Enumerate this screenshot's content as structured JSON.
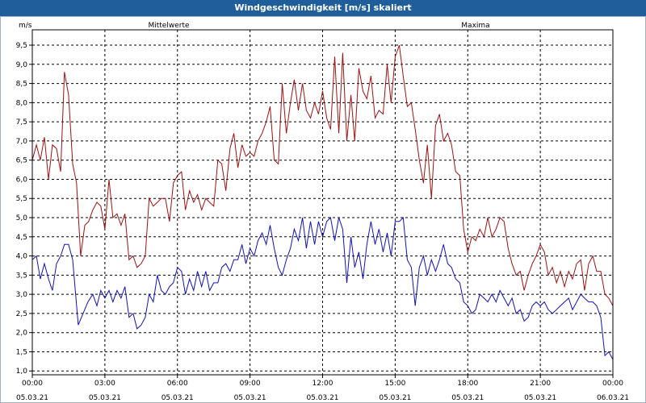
{
  "window": {
    "title": "Windgeschwindigkeit [m/s] skaliert"
  },
  "colors": {
    "titlebar": "#1f5e9a",
    "mean": "#1010c0",
    "max": "#a01010",
    "grid": "#000000"
  },
  "chart_data": {
    "type": "line",
    "title": "Windgeschwindigkeit [m/s] skaliert",
    "ylabel": "m/s",
    "ylim": [
      0.9,
      9.9
    ],
    "xlim_hours": [
      0,
      24
    ],
    "y_ticks": [
      "1.0",
      "1.5",
      "2.0",
      "2.5",
      "3.0",
      "3.5",
      "4.0",
      "4.5",
      "5.0",
      "5.5",
      "6.0",
      "6.5",
      "7.0",
      "7.5",
      "8.0",
      "8.5",
      "9.0",
      "9.5"
    ],
    "y_tick_values": [
      1.0,
      1.5,
      2.0,
      2.5,
      3.0,
      3.5,
      4.0,
      4.5,
      5.0,
      5.5,
      6.0,
      6.5,
      7.0,
      7.5,
      8.0,
      8.5,
      9.0,
      9.5
    ],
    "x_ticks": [
      {
        "time": "00:00",
        "date": "05.03.21"
      },
      {
        "time": "03:00",
        "date": "05.03.21"
      },
      {
        "time": "06:00",
        "date": "05.03.21"
      },
      {
        "time": "09:00",
        "date": "05.03.21"
      },
      {
        "time": "12:00",
        "date": "05.03.21"
      },
      {
        "time": "15:00",
        "date": "05.03.21"
      },
      {
        "time": "18:00",
        "date": "05.03.21"
      },
      {
        "time": "21:00",
        "date": "05.03.21"
      },
      {
        "time": "00:00",
        "date": "06.03.21"
      }
    ],
    "grid": true,
    "series": [
      {
        "name": "Mittelwerte",
        "color": "#1010c0",
        "points": [
          [
            0.0,
            3.9
          ],
          [
            0.17,
            4.0
          ],
          [
            0.33,
            3.4
          ],
          [
            0.5,
            3.8
          ],
          [
            0.67,
            3.4
          ],
          [
            0.83,
            3.1
          ],
          [
            1.0,
            3.8
          ],
          [
            1.17,
            4.0
          ],
          [
            1.33,
            4.3
          ],
          [
            1.5,
            4.3
          ],
          [
            1.67,
            3.9
          ],
          [
            1.9,
            2.2
          ],
          [
            2.1,
            2.5
          ],
          [
            2.3,
            2.8
          ],
          [
            2.5,
            3.0
          ],
          [
            2.67,
            2.7
          ],
          [
            2.83,
            3.1
          ],
          [
            3.0,
            2.9
          ],
          [
            3.17,
            3.1
          ],
          [
            3.33,
            2.8
          ],
          [
            3.5,
            3.1
          ],
          [
            3.67,
            2.9
          ],
          [
            3.83,
            3.2
          ],
          [
            4.0,
            2.4
          ],
          [
            4.17,
            2.5
          ],
          [
            4.33,
            2.1
          ],
          [
            4.5,
            2.2
          ],
          [
            4.67,
            2.4
          ],
          [
            4.83,
            3.0
          ],
          [
            5.0,
            2.8
          ],
          [
            5.17,
            3.5
          ],
          [
            5.33,
            3.1
          ],
          [
            5.5,
            3.0
          ],
          [
            5.67,
            3.2
          ],
          [
            5.83,
            3.3
          ],
          [
            6.0,
            3.7
          ],
          [
            6.17,
            3.6
          ],
          [
            6.33,
            3.0
          ],
          [
            6.5,
            3.4
          ],
          [
            6.67,
            3.1
          ],
          [
            6.83,
            3.6
          ],
          [
            7.0,
            3.2
          ],
          [
            7.17,
            3.6
          ],
          [
            7.33,
            3.1
          ],
          [
            7.5,
            3.3
          ],
          [
            7.67,
            3.3
          ],
          [
            7.83,
            3.7
          ],
          [
            8.0,
            3.8
          ],
          [
            8.17,
            3.6
          ],
          [
            8.33,
            3.9
          ],
          [
            8.5,
            3.9
          ],
          [
            8.67,
            4.3
          ],
          [
            8.83,
            3.8
          ],
          [
            9.0,
            4.2
          ],
          [
            9.17,
            4.0
          ],
          [
            9.33,
            4.4
          ],
          [
            9.5,
            4.6
          ],
          [
            9.67,
            4.3
          ],
          [
            9.83,
            4.8
          ],
          [
            10.0,
            4.2
          ],
          [
            10.17,
            3.7
          ],
          [
            10.33,
            3.5
          ],
          [
            10.5,
            3.9
          ],
          [
            10.67,
            4.2
          ],
          [
            10.83,
            4.7
          ],
          [
            11.0,
            4.4
          ],
          [
            11.17,
            5.0
          ],
          [
            11.33,
            4.2
          ],
          [
            11.5,
            4.9
          ],
          [
            11.67,
            4.3
          ],
          [
            11.83,
            4.9
          ],
          [
            12.0,
            4.5
          ],
          [
            12.17,
            4.9
          ],
          [
            12.33,
            5.0
          ],
          [
            12.5,
            4.4
          ],
          [
            12.67,
            5.0
          ],
          [
            12.83,
            4.7
          ],
          [
            13.0,
            3.3
          ],
          [
            13.17,
            4.5
          ],
          [
            13.33,
            3.7
          ],
          [
            13.5,
            4.1
          ],
          [
            13.67,
            3.4
          ],
          [
            13.83,
            4.3
          ],
          [
            14.0,
            4.9
          ],
          [
            14.17,
            4.3
          ],
          [
            14.33,
            4.7
          ],
          [
            14.5,
            4.1
          ],
          [
            14.67,
            4.6
          ],
          [
            14.83,
            4.0
          ],
          [
            15.0,
            4.9
          ],
          [
            15.17,
            4.9
          ],
          [
            15.33,
            5.0
          ],
          [
            15.5,
            3.9
          ],
          [
            15.67,
            3.7
          ],
          [
            15.83,
            2.7
          ],
          [
            16.0,
            3.7
          ],
          [
            16.17,
            4.0
          ],
          [
            16.33,
            3.5
          ],
          [
            16.5,
            3.9
          ],
          [
            16.67,
            3.6
          ],
          [
            16.83,
            3.9
          ],
          [
            17.0,
            4.3
          ],
          [
            17.17,
            3.8
          ],
          [
            17.33,
            3.7
          ],
          [
            17.5,
            3.4
          ],
          [
            17.67,
            3.3
          ],
          [
            17.83,
            2.8
          ],
          [
            18.0,
            2.7
          ],
          [
            18.17,
            2.5
          ],
          [
            18.33,
            2.6
          ],
          [
            18.5,
            3.0
          ],
          [
            18.67,
            2.9
          ],
          [
            18.83,
            2.8
          ],
          [
            19.0,
            3.0
          ],
          [
            19.17,
            2.8
          ],
          [
            19.33,
            3.1
          ],
          [
            19.5,
            2.9
          ],
          [
            19.67,
            2.7
          ],
          [
            19.83,
            2.9
          ],
          [
            20.0,
            2.5
          ],
          [
            20.17,
            2.6
          ],
          [
            20.33,
            2.3
          ],
          [
            20.5,
            2.4
          ],
          [
            20.67,
            2.7
          ],
          [
            20.83,
            2.8
          ],
          [
            21.0,
            2.7
          ],
          [
            21.17,
            2.8
          ],
          [
            21.33,
            2.6
          ],
          [
            21.5,
            2.5
          ],
          [
            21.67,
            2.6
          ],
          [
            21.83,
            2.7
          ],
          [
            22.0,
            2.8
          ],
          [
            22.17,
            2.9
          ],
          [
            22.33,
            2.6
          ],
          [
            22.5,
            2.8
          ],
          [
            22.67,
            3.0
          ],
          [
            22.83,
            2.9
          ],
          [
            23.0,
            2.8
          ],
          [
            23.17,
            2.8
          ],
          [
            23.33,
            2.7
          ],
          [
            23.5,
            2.4
          ],
          [
            23.67,
            1.4
          ],
          [
            23.83,
            1.5
          ],
          [
            24.0,
            1.3
          ]
        ]
      },
      {
        "name": "Maxima",
        "color": "#a01010",
        "points": [
          [
            0.0,
            6.5
          ],
          [
            0.17,
            6.9
          ],
          [
            0.33,
            6.5
          ],
          [
            0.5,
            7.1
          ],
          [
            0.67,
            6.0
          ],
          [
            0.83,
            6.9
          ],
          [
            1.0,
            6.8
          ],
          [
            1.17,
            6.2
          ],
          [
            1.33,
            8.8
          ],
          [
            1.5,
            8.2
          ],
          [
            1.67,
            6.4
          ],
          [
            1.83,
            5.9
          ],
          [
            2.0,
            4.0
          ],
          [
            2.17,
            4.8
          ],
          [
            2.33,
            4.9
          ],
          [
            2.5,
            5.2
          ],
          [
            2.67,
            5.4
          ],
          [
            2.83,
            5.3
          ],
          [
            3.0,
            4.7
          ],
          [
            3.17,
            6.0
          ],
          [
            3.33,
            5.0
          ],
          [
            3.5,
            5.1
          ],
          [
            3.67,
            4.8
          ],
          [
            3.83,
            5.1
          ],
          [
            4.0,
            3.9
          ],
          [
            4.17,
            4.0
          ],
          [
            4.33,
            3.7
          ],
          [
            4.5,
            3.8
          ],
          [
            4.67,
            4.0
          ],
          [
            4.83,
            5.5
          ],
          [
            5.0,
            5.3
          ],
          [
            5.17,
            5.4
          ],
          [
            5.33,
            5.5
          ],
          [
            5.5,
            5.5
          ],
          [
            5.67,
            4.9
          ],
          [
            5.83,
            5.9
          ],
          [
            6.0,
            6.1
          ],
          [
            6.17,
            6.2
          ],
          [
            6.33,
            5.2
          ],
          [
            6.5,
            5.7
          ],
          [
            6.67,
            5.4
          ],
          [
            6.83,
            5.6
          ],
          [
            7.0,
            5.2
          ],
          [
            7.17,
            5.5
          ],
          [
            7.33,
            5.4
          ],
          [
            7.5,
            5.3
          ],
          [
            7.67,
            6.5
          ],
          [
            7.83,
            6.4
          ],
          [
            8.0,
            5.7
          ],
          [
            8.17,
            6.8
          ],
          [
            8.33,
            7.2
          ],
          [
            8.5,
            6.3
          ],
          [
            8.67,
            6.9
          ],
          [
            8.83,
            6.6
          ],
          [
            9.0,
            6.7
          ],
          [
            9.17,
            6.6
          ],
          [
            9.33,
            7.0
          ],
          [
            9.5,
            7.2
          ],
          [
            9.67,
            7.5
          ],
          [
            9.83,
            7.9
          ],
          [
            10.0,
            6.5
          ],
          [
            10.17,
            6.4
          ],
          [
            10.33,
            8.5
          ],
          [
            10.5,
            7.2
          ],
          [
            10.67,
            8.0
          ],
          [
            10.83,
            8.6
          ],
          [
            11.0,
            7.8
          ],
          [
            11.17,
            8.5
          ],
          [
            11.33,
            7.8
          ],
          [
            11.5,
            7.6
          ],
          [
            11.67,
            8.0
          ],
          [
            11.83,
            7.7
          ],
          [
            12.0,
            8.3
          ],
          [
            12.17,
            7.6
          ],
          [
            12.33,
            7.3
          ],
          [
            12.5,
            9.2
          ],
          [
            12.67,
            7.2
          ],
          [
            12.83,
            9.3
          ],
          [
            13.0,
            7.0
          ],
          [
            13.17,
            8.2
          ],
          [
            13.33,
            7.0
          ],
          [
            13.5,
            8.9
          ],
          [
            13.67,
            8.3
          ],
          [
            13.83,
            8.1
          ],
          [
            14.0,
            8.7
          ],
          [
            14.17,
            7.6
          ],
          [
            14.33,
            7.8
          ],
          [
            14.5,
            7.7
          ],
          [
            14.67,
            9.0
          ],
          [
            14.83,
            8.0
          ],
          [
            15.0,
            9.2
          ],
          [
            15.17,
            9.5
          ],
          [
            15.33,
            8.7
          ],
          [
            15.5,
            7.9
          ],
          [
            15.67,
            8.0
          ],
          [
            15.83,
            7.3
          ],
          [
            16.0,
            6.5
          ],
          [
            16.17,
            5.9
          ],
          [
            16.33,
            6.9
          ],
          [
            16.5,
            5.5
          ],
          [
            16.67,
            7.4
          ],
          [
            16.83,
            7.7
          ],
          [
            17.0,
            7.0
          ],
          [
            17.17,
            7.2
          ],
          [
            17.33,
            6.9
          ],
          [
            17.5,
            6.2
          ],
          [
            17.67,
            6.1
          ],
          [
            17.83,
            4.7
          ],
          [
            18.0,
            4.1
          ],
          [
            18.17,
            4.5
          ],
          [
            18.33,
            4.4
          ],
          [
            18.5,
            4.7
          ],
          [
            18.67,
            4.5
          ],
          [
            18.83,
            5.0
          ],
          [
            19.0,
            4.5
          ],
          [
            19.17,
            4.7
          ],
          [
            19.33,
            5.0
          ],
          [
            19.5,
            4.9
          ],
          [
            19.67,
            4.2
          ],
          [
            19.83,
            3.8
          ],
          [
            20.0,
            3.5
          ],
          [
            20.17,
            3.6
          ],
          [
            20.33,
            3.1
          ],
          [
            20.5,
            3.5
          ],
          [
            20.67,
            3.8
          ],
          [
            20.83,
            4.0
          ],
          [
            21.0,
            4.3
          ],
          [
            21.17,
            4.1
          ],
          [
            21.33,
            3.5
          ],
          [
            21.5,
            3.7
          ],
          [
            21.67,
            3.3
          ],
          [
            21.83,
            3.6
          ],
          [
            22.0,
            3.2
          ],
          [
            22.17,
            3.6
          ],
          [
            22.33,
            3.4
          ],
          [
            22.5,
            3.8
          ],
          [
            22.67,
            3.9
          ],
          [
            22.83,
            3.1
          ],
          [
            23.0,
            3.8
          ],
          [
            23.17,
            4.0
          ],
          [
            23.33,
            3.6
          ],
          [
            23.5,
            3.6
          ],
          [
            23.67,
            3.0
          ],
          [
            23.83,
            2.9
          ],
          [
            24.0,
            2.7
          ]
        ]
      }
    ]
  }
}
